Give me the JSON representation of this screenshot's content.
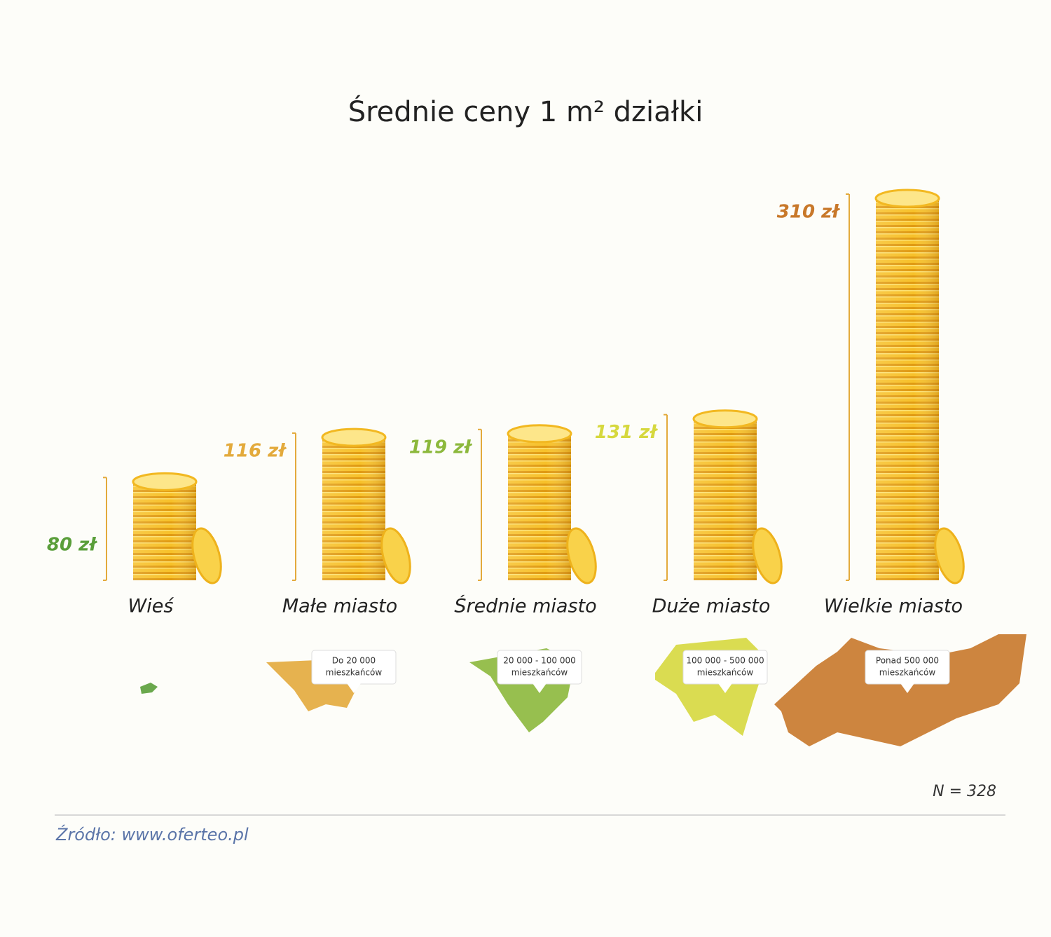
{
  "chart_data": {
    "type": "bar",
    "title": "Średnie ceny 1 m² działki",
    "categories": [
      "Wieś",
      "Małe miasto",
      "Średnie miasto",
      "Duże miasto",
      "Wielkie miasto"
    ],
    "values": [
      80,
      116,
      119,
      131,
      310
    ],
    "value_labels": [
      "80 zł",
      "116 zł",
      "119 zł",
      "131 zł",
      "310 zł"
    ],
    "colors": [
      "#5a9e3a",
      "#e3aa3c",
      "#8cb83c",
      "#d6d83e",
      "#c8782a"
    ],
    "populations": [
      null,
      [
        "Do 20 000",
        "mieszkańców"
      ],
      [
        "20 000 - 100 000",
        "mieszkańców"
      ],
      [
        "100 000 - 500 000",
        "mieszkańców"
      ],
      [
        "Ponad 500 000",
        "mieszkańców"
      ]
    ],
    "note": "N = 328",
    "source": "Źródło: www.oferteo.pl"
  }
}
